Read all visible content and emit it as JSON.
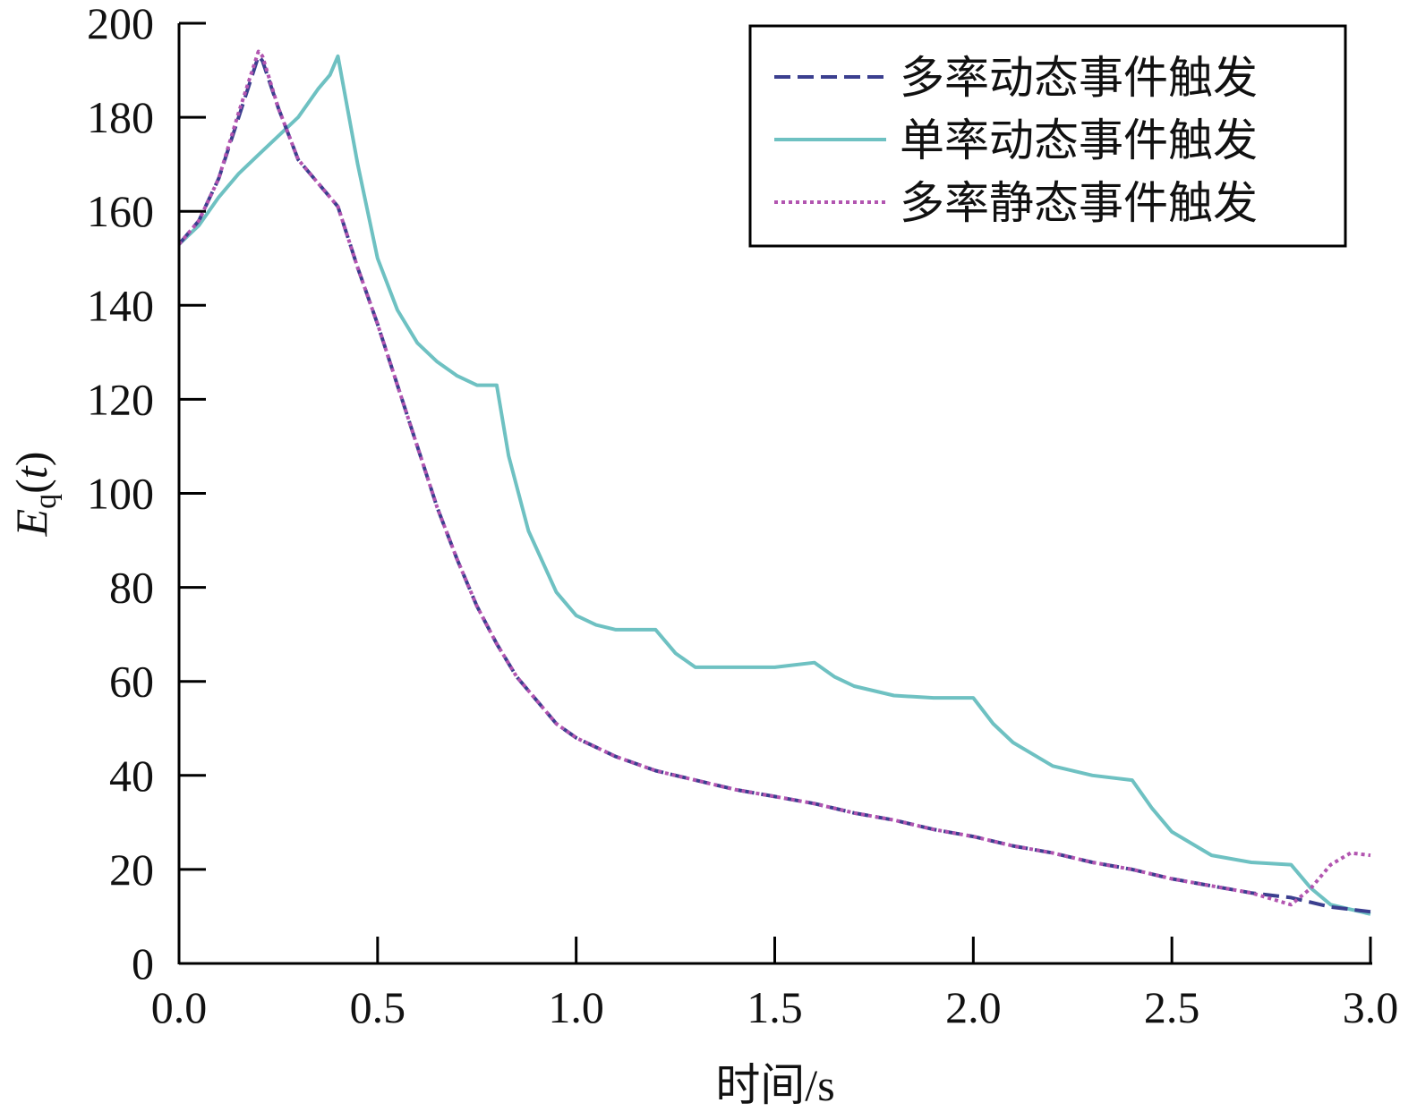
{
  "chart_data": {
    "type": "line",
    "title": "",
    "xlabel": "时间/s",
    "ylabel": {
      "base": "E",
      "sub": "q",
      "arg": "t"
    },
    "xlim": [
      0,
      3
    ],
    "ylim": [
      0,
      200
    ],
    "xticks": [
      "0.0",
      "0.5",
      "1.0",
      "1.5",
      "2.0",
      "2.5",
      "3.0"
    ],
    "yticks": [
      "0",
      "20",
      "40",
      "60",
      "80",
      "100",
      "120",
      "140",
      "160",
      "180",
      "200"
    ],
    "grid": false,
    "legend_position": "top-right",
    "series": [
      {
        "name": "多率动态事件触发",
        "color": "#3b3f8f",
        "style": "dashed",
        "x": [
          0,
          0.05,
          0.1,
          0.15,
          0.2,
          0.21,
          0.25,
          0.3,
          0.35,
          0.4,
          0.45,
          0.5,
          0.55,
          0.6,
          0.65,
          0.7,
          0.75,
          0.8,
          0.85,
          0.9,
          0.95,
          1.0,
          1.05,
          1.1,
          1.2,
          1.3,
          1.4,
          1.5,
          1.6,
          1.7,
          1.8,
          1.9,
          2.0,
          2.1,
          2.2,
          2.3,
          2.4,
          2.5,
          2.6,
          2.7,
          2.8,
          2.9,
          3.0
        ],
        "y": [
          153,
          158,
          167,
          180,
          193,
          192,
          182,
          171,
          166,
          161,
          148,
          136,
          123,
          110,
          97,
          86,
          76,
          68,
          61,
          56,
          51,
          48,
          46,
          44,
          41,
          39,
          37,
          35.5,
          34,
          32,
          30.5,
          28.5,
          27,
          25,
          23.5,
          21.5,
          20,
          18,
          16.5,
          15,
          14,
          12,
          11
        ]
      },
      {
        "name": "单率动态事件触发",
        "color": "#6ec1c2",
        "style": "solid",
        "x": [
          0,
          0.05,
          0.1,
          0.15,
          0.2,
          0.25,
          0.3,
          0.35,
          0.38,
          0.4,
          0.45,
          0.5,
          0.55,
          0.6,
          0.65,
          0.7,
          0.75,
          0.8,
          0.83,
          0.88,
          0.95,
          1.0,
          1.05,
          1.1,
          1.15,
          1.2,
          1.25,
          1.3,
          1.4,
          1.5,
          1.6,
          1.65,
          1.7,
          1.8,
          1.9,
          2.0,
          2.05,
          2.1,
          2.2,
          2.3,
          2.4,
          2.45,
          2.5,
          2.6,
          2.7,
          2.8,
          2.85,
          2.9,
          3.0
        ],
        "y": [
          153,
          157,
          163,
          168,
          172,
          176,
          180,
          186,
          189,
          193,
          170,
          150,
          139,
          132,
          128,
          125,
          123,
          123,
          108,
          92,
          79,
          74,
          72,
          71,
          71,
          71,
          66,
          63,
          63,
          63,
          64,
          61,
          59,
          57,
          56.5,
          56.5,
          51,
          47,
          42,
          40,
          39,
          33,
          28,
          23,
          21.5,
          21,
          16,
          12.5,
          10.5
        ]
      },
      {
        "name": "多率静态事件触发",
        "color": "#b255b0",
        "style": "dotted",
        "x": [
          0,
          0.05,
          0.1,
          0.15,
          0.2,
          0.21,
          0.25,
          0.3,
          0.35,
          0.4,
          0.45,
          0.5,
          0.55,
          0.6,
          0.65,
          0.7,
          0.75,
          0.8,
          0.85,
          0.9,
          0.95,
          1.0,
          1.05,
          1.1,
          1.2,
          1.3,
          1.4,
          1.5,
          1.6,
          1.7,
          1.8,
          1.9,
          2.0,
          2.1,
          2.2,
          2.3,
          2.4,
          2.5,
          2.6,
          2.7,
          2.8,
          2.85,
          2.9,
          2.95,
          3.0
        ],
        "y": [
          153,
          158,
          167,
          181,
          194,
          193,
          182,
          171,
          166,
          161,
          148,
          136,
          123,
          110,
          97,
          86,
          76,
          68,
          61,
          56,
          51,
          48,
          46,
          44,
          41,
          39,
          37,
          35.5,
          34,
          32,
          30.5,
          28.5,
          27,
          25,
          23.5,
          21.5,
          20,
          18,
          16.5,
          15,
          12.5,
          16,
          21,
          23.5,
          23
        ]
      }
    ]
  }
}
